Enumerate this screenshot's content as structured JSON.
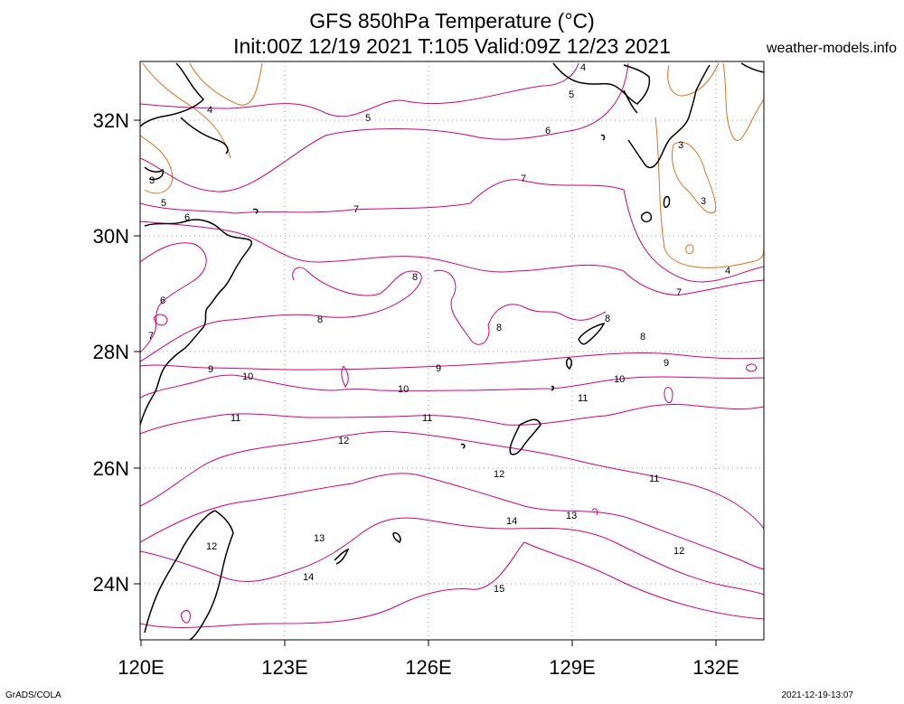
{
  "map": {
    "title_line1": "GFS 850hPa Temperature (°C)",
    "title_line2": "Init:00Z 12/19 2021 T:105 Valid:09Z 12/23 2021",
    "site": "weather-models.info",
    "footer_left": "GrADS/COLA",
    "footer_right": "2021-12-19-13:07",
    "lon_ticks": [
      "120E",
      "123E",
      "126E",
      "129E",
      "132E"
    ],
    "lat_ticks": [
      "32N",
      "30N",
      "28N",
      "26N",
      "24N"
    ],
    "colors": {
      "warm": "#d6007a",
      "cool": "#e07020",
      "coast": "#000000",
      "grid": "#9a9a9a"
    }
  },
  "contour_labels": [
    "3",
    "3",
    "3",
    "4",
    "4",
    "4",
    "5",
    "5",
    "5",
    "6",
    "6",
    "6",
    "7",
    "7",
    "7",
    "7",
    "8",
    "8",
    "8",
    "8",
    "8",
    "9",
    "9",
    "9",
    "10",
    "10",
    "10",
    "11",
    "11",
    "11",
    "11",
    "12",
    "12",
    "12",
    "12",
    "13",
    "13",
    "14",
    "14",
    "15"
  ]
}
